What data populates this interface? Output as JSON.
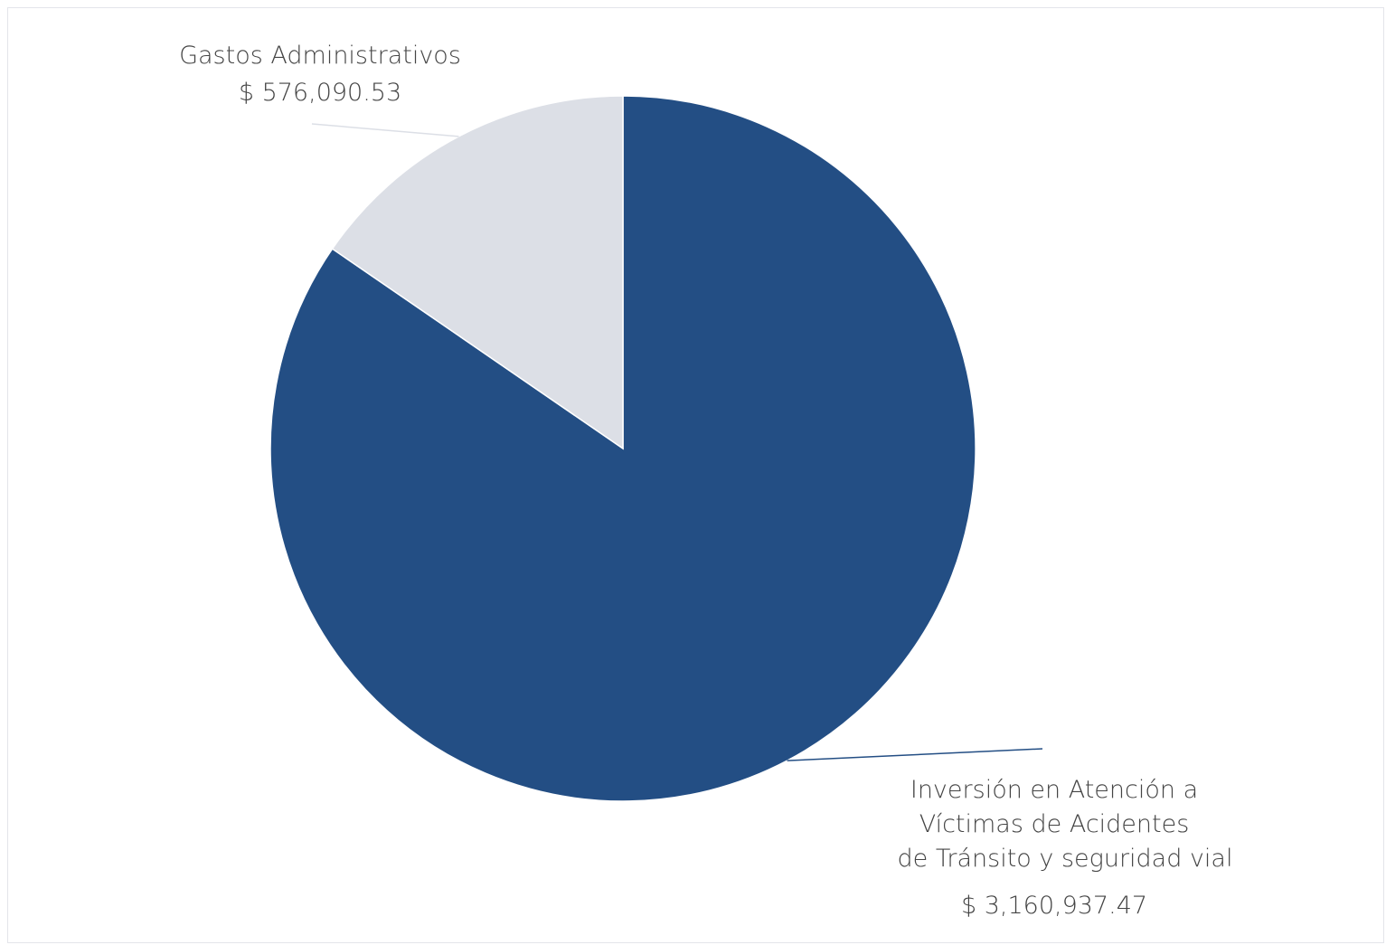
{
  "chart_data": {
    "type": "pie",
    "title": "",
    "slices": [
      {
        "label_lines": [
          "Inversión en Atención a",
          "Víctimas de Acidentes",
          "de Tránsito y seguridad vial"
        ],
        "value_text": "$ 3,160,937.47",
        "value": 3160937.47,
        "color": "#234e84"
      },
      {
        "label_lines": [
          "Gastos Administrativos"
        ],
        "value_text": "$ 576,090.53",
        "value": 576090.53,
        "color": "#dcdfe6"
      }
    ],
    "start_angle_deg": 0,
    "direction": "clockwise",
    "legend": "none",
    "leader_lines": true
  }
}
